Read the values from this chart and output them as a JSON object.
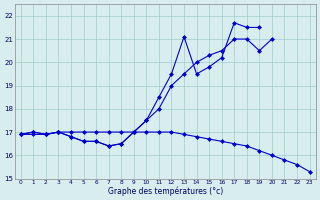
{
  "xlabel": "Graphe des températures (°c)",
  "hours": [
    0,
    1,
    2,
    3,
    4,
    5,
    6,
    7,
    8,
    9,
    10,
    11,
    12,
    13,
    14,
    15,
    16,
    17,
    18,
    19,
    20,
    21,
    22,
    23
  ],
  "line1": [
    16.9,
    17.0,
    16.9,
    17.0,
    16.8,
    16.6,
    16.6,
    16.4,
    16.5,
    17.0,
    17.5,
    18.0,
    19.0,
    19.5,
    20.0,
    20.3,
    20.5,
    21.0,
    21.0,
    20.5,
    21.0,
    null,
    null,
    null
  ],
  "line2": [
    16.9,
    17.0,
    16.9,
    17.0,
    16.8,
    16.6,
    16.6,
    16.4,
    16.5,
    17.0,
    17.5,
    18.5,
    19.5,
    21.1,
    19.5,
    19.8,
    20.2,
    21.7,
    21.5,
    21.5,
    null,
    null,
    null,
    null
  ],
  "line3": [
    16.9,
    16.9,
    16.9,
    17.0,
    17.0,
    17.0,
    17.0,
    17.0,
    17.0,
    17.0,
    17.0,
    17.0,
    17.0,
    16.9,
    16.8,
    16.7,
    16.6,
    16.5,
    16.4,
    16.2,
    16.0,
    15.8,
    15.6,
    15.3
  ],
  "ylim": [
    15.0,
    22.5
  ],
  "yticks": [
    15,
    16,
    17,
    18,
    19,
    20,
    21,
    22
  ],
  "xticks": [
    0,
    1,
    2,
    3,
    4,
    5,
    6,
    7,
    8,
    9,
    10,
    11,
    12,
    13,
    14,
    15,
    16,
    17,
    18,
    19,
    20,
    21,
    22,
    23
  ],
  "line_color": "#0000cc",
  "bg_color": "#d8eeee",
  "grid_color": "#a0cccc",
  "markersize": 2.5
}
